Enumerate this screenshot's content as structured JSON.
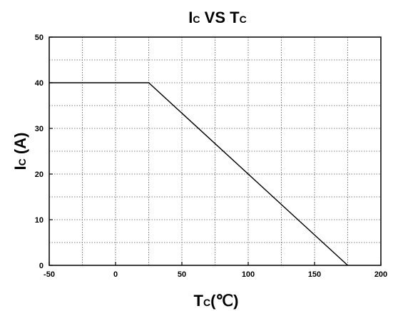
{
  "chart_data": {
    "type": "line",
    "title": {
      "main1": "I",
      "sub1": "C",
      "mid": " VS T",
      "sub2": "C"
    },
    "xlabel": {
      "main": "T",
      "sub": "C",
      "unit": "(℃)"
    },
    "ylabel": {
      "main": "I",
      "sub": "C",
      "unit": " (A)"
    },
    "xlim": [
      -50,
      200
    ],
    "ylim": [
      0,
      50
    ],
    "x_ticks": [
      -50,
      0,
      50,
      100,
      150,
      200
    ],
    "y_ticks": [
      0,
      10,
      20,
      30,
      40,
      50
    ],
    "grid": true,
    "grid_style": "dotted",
    "series": [
      {
        "x": [
          -50,
          25,
          175
        ],
        "y": [
          40,
          40,
          0
        ],
        "color": "#000000"
      }
    ]
  }
}
